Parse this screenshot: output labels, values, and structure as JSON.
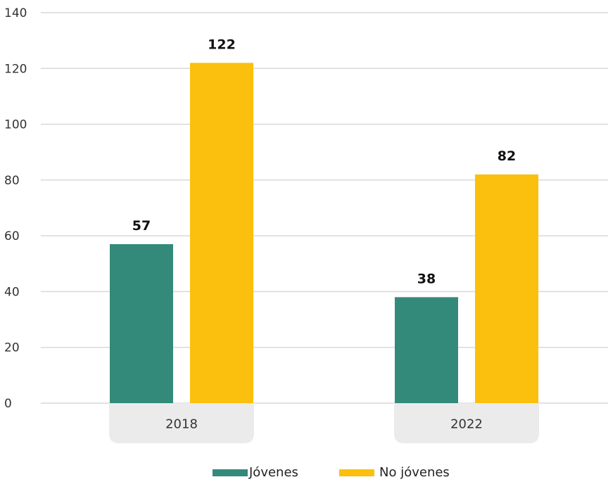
{
  "chart_data": {
    "type": "bar",
    "title": "",
    "xlabel": "",
    "ylabel": "",
    "categories": [
      "2018",
      "2022"
    ],
    "ylim": [
      0,
      140
    ],
    "yticks": [
      0,
      20,
      40,
      60,
      80,
      100,
      120,
      140
    ],
    "grid": true,
    "legend_position": "bottom-center",
    "data_labels": true,
    "series": [
      {
        "name": "Jóvenes",
        "values": [
          57,
          38
        ],
        "color": "#338a7a"
      },
      {
        "name": "No jóvenes",
        "values": [
          122,
          82
        ],
        "color": "#fbc00d"
      }
    ]
  },
  "colors": {
    "gridline": "#d9d9d9",
    "category_band": "#ebebeb"
  }
}
